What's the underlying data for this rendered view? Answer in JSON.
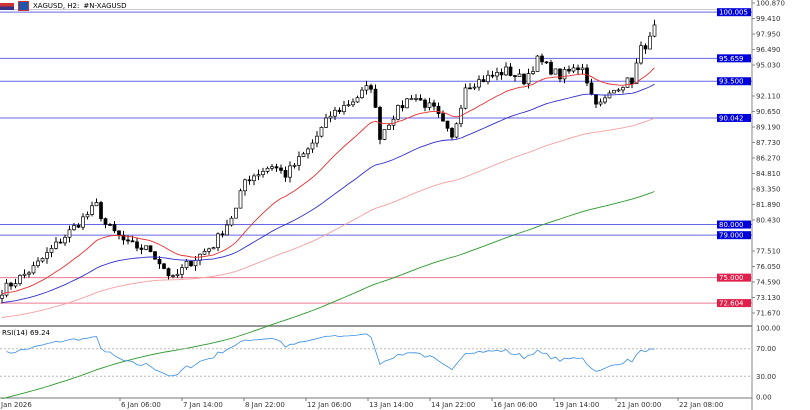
{
  "header": {
    "symbol": "XAGUSD, H2:",
    "description": "#N-XAGUSD"
  },
  "rsi": {
    "label": "RSI(14) 69.24",
    "levels": [
      "100.00",
      "70.00",
      "30.00",
      "0.00"
    ]
  },
  "price_axis": {
    "ticks": [
      "100.870",
      "99.410",
      "97.950",
      "96.490",
      "95.030",
      "92.110",
      "90.650",
      "89.190",
      "87.730",
      "86.270",
      "84.810",
      "83.350",
      "81.890",
      "80.430",
      "77.510",
      "76.050",
      "74.590",
      "73.130",
      "71.670"
    ]
  },
  "levels": [
    {
      "price": "100.005",
      "color": "#0000dd"
    },
    {
      "price": "95.659",
      "color": "#0000dd"
    },
    {
      "price": "93.500",
      "color": "#0000dd"
    },
    {
      "price": "90.042",
      "color": "#0000dd"
    },
    {
      "price": "80.000",
      "color": "#0000dd"
    },
    {
      "price": "79.000",
      "color": "#0000dd"
    },
    {
      "price": "75.000",
      "color": "#e0204a"
    },
    {
      "price": "72.604",
      "color": "#e0204a"
    }
  ],
  "time_axis": [
    "Jan 2026",
    "6 Jan 06:00",
    "7 Jan 14:00",
    "8 Jan 22:00",
    "12 Jan 06:00",
    "13 Jan 14:00",
    "14 Jan 22:00",
    "16 Jan 06:00",
    "19 Jan 14:00",
    "21 Jan 00:00",
    "22 Jan 08:00"
  ],
  "chart_data": {
    "type": "candlestick",
    "price_range": [
      71.2,
      101.2
    ],
    "close_keypoints": [
      [
        0,
        73.8
      ],
      [
        7,
        75.9
      ],
      [
        13,
        78.5
      ],
      [
        21,
        81.8
      ],
      [
        23,
        80
      ],
      [
        28,
        78.1
      ],
      [
        33,
        77.6
      ],
      [
        38,
        74.8
      ],
      [
        41,
        76.2
      ],
      [
        47,
        78.1
      ],
      [
        52,
        81.4
      ],
      [
        54,
        84.2
      ],
      [
        60,
        85.6
      ],
      [
        63,
        84.7
      ],
      [
        68,
        87
      ],
      [
        73,
        90.3
      ],
      [
        78,
        91.7
      ],
      [
        82,
        93.1
      ],
      [
        84,
        88.4
      ],
      [
        87,
        90.3
      ],
      [
        91,
        92.2
      ],
      [
        96,
        90.8
      ],
      [
        100,
        88
      ],
      [
        103,
        93.1
      ],
      [
        109,
        94
      ],
      [
        112,
        94.5
      ],
      [
        116,
        93.6
      ],
      [
        119,
        95.5
      ],
      [
        124,
        94
      ],
      [
        129,
        95
      ],
      [
        131,
        92.2
      ],
      [
        133,
        91.3
      ],
      [
        137,
        93.1
      ],
      [
        140,
        93.6
      ],
      [
        142,
        96.5
      ],
      [
        144,
        97.4
      ],
      [
        145,
        98.8
      ]
    ],
    "moving_averages": [
      {
        "period": 20,
        "color": "#e83030",
        "seed": 73.5
      },
      {
        "period": 50,
        "color": "#3030d0",
        "seed": 72.6
      },
      {
        "period": 100,
        "color": "#f5a0a0",
        "seed": 71.2
      },
      {
        "period": 200,
        "color": "#2a9a2a",
        "seed": 63.5
      }
    ],
    "rsi_value": 69.24
  },
  "colors": {
    "bull": "#ffffff",
    "bear": "#000000"
  }
}
